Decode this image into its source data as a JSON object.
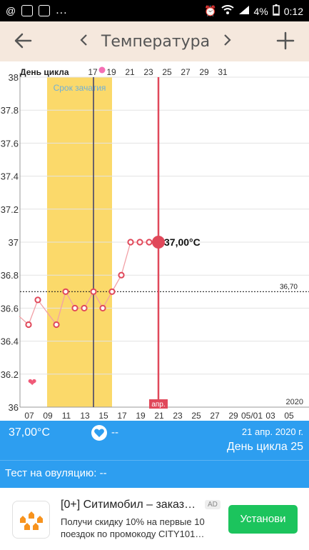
{
  "status_bar": {
    "at_icon": "@",
    "battery": "4%",
    "time": "0:12",
    "more": "..."
  },
  "header": {
    "title": "Температура",
    "prev_icon": "chevron-left-icon",
    "next_icon": "chevron-right-icon",
    "back_icon": "arrow-left-icon",
    "add_icon": "plus-icon"
  },
  "chart_data": {
    "type": "line",
    "top_axis_label": "День цикла",
    "top_ticks": [
      "17",
      "19",
      "21",
      "23",
      "25",
      "27",
      "29",
      "31"
    ],
    "bottom_ticks": [
      "07",
      "09",
      "11",
      "13",
      "15",
      "17",
      "19",
      "21",
      "23",
      "25",
      "27",
      "29",
      "05/01",
      "03",
      "05"
    ],
    "y_ticks": [
      "38",
      "37.8",
      "37.6",
      "37.4",
      "37.2",
      "37",
      "36.8",
      "36.6",
      "36.4",
      "36.2",
      "36"
    ],
    "ylim": [
      36,
      38
    ],
    "conception_label": "Срок зачатия",
    "conception_range": [
      "2020-04-09",
      "2020-04-16"
    ],
    "coverline_value": 36.7,
    "coverline_label": "36,70",
    "selected_date": "2020-04-21",
    "selected_label": "37,00°C",
    "month_label": "апр.",
    "year_label": "2020",
    "cycle_line_date": "2020-04-14",
    "heart_date": "2020-04-08",
    "series": [
      {
        "points": [
          {
            "date": "2020-04-06",
            "value": 36.55
          },
          {
            "date": "2020-04-07",
            "value": 36.5
          },
          {
            "date": "2020-04-08",
            "value": 36.65
          },
          {
            "date": "2020-04-10",
            "value": 36.5
          },
          {
            "date": "2020-04-11",
            "value": 36.7
          },
          {
            "date": "2020-04-12",
            "value": 36.6
          },
          {
            "date": "2020-04-13",
            "value": 36.6
          },
          {
            "date": "2020-04-14",
            "value": 36.7
          },
          {
            "date": "2020-04-15",
            "value": 36.6
          },
          {
            "date": "2020-04-16",
            "value": 36.7
          },
          {
            "date": "2020-04-17",
            "value": 36.8
          },
          {
            "date": "2020-04-18",
            "value": 37.0
          },
          {
            "date": "2020-04-19",
            "value": 37.0
          },
          {
            "date": "2020-04-20",
            "value": 37.0
          },
          {
            "date": "2020-04-21",
            "value": 37.0
          }
        ]
      }
    ]
  },
  "info": {
    "temperature": "37,00°C",
    "heart_value": "--",
    "date": "21 апр. 2020 г.",
    "cycle_day": "День цикла 25"
  },
  "ovulation_test": {
    "label": "Тест на овуляцию: --"
  },
  "ad": {
    "title": "[0+] Ситимобил – заказ…",
    "badge": "AD",
    "description": "Получи скидку 10% на первые 10 поездок по промокоду CITY101…",
    "install_label": "Установи"
  },
  "colors": {
    "header_bg": "#f5e8dd",
    "info_bg": "#2d9ef0",
    "conception": "#fbd96a",
    "line": "#f2a0a6",
    "selected": "#e0485a",
    "install": "#1cc45d"
  }
}
